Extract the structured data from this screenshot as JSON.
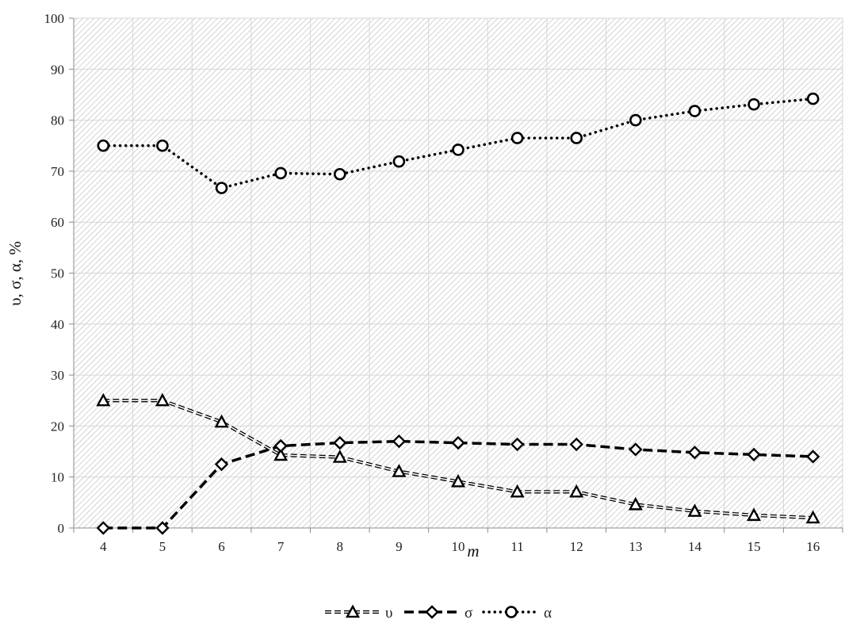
{
  "chart_data": {
    "type": "line",
    "title": "",
    "xlabel": "m",
    "ylabel": "υ, σ, α, %",
    "categories": [
      "4",
      "5",
      "6",
      "7",
      "8",
      "9",
      "10",
      "11",
      "12",
      "13",
      "14",
      "15",
      "16"
    ],
    "ylim": [
      0,
      100
    ],
    "yticks": [
      "0",
      "10",
      "20",
      "30",
      "40",
      "50",
      "60",
      "70",
      "80",
      "90",
      "100"
    ],
    "grid": true,
    "legend_position": "bottom-center",
    "series": [
      {
        "name": "υ",
        "marker": "triangle",
        "line_style": "thin-dashed-double",
        "values": [
          25,
          25,
          20.8,
          14.3,
          13.9,
          11.1,
          9.1,
          7.1,
          7.1,
          4.6,
          3.3,
          2.5,
          2.0
        ]
      },
      {
        "name": "σ",
        "marker": "diamond",
        "line_style": "thick-dashed",
        "values": [
          0,
          0,
          12.5,
          16.1,
          16.7,
          17.0,
          16.7,
          16.4,
          16.4,
          15.4,
          14.8,
          14.4,
          14.0
        ]
      },
      {
        "name": "α",
        "marker": "circle",
        "line_style": "dotted",
        "values": [
          75,
          75,
          66.7,
          69.6,
          69.4,
          71.9,
          74.2,
          76.5,
          76.5,
          80.0,
          81.8,
          83.1,
          84.2
        ]
      }
    ],
    "colors": {
      "plot_background": "#ffffff",
      "hatch": "#c8c8c8",
      "gridline": "#d6d6d6",
      "series": "#000000"
    }
  }
}
